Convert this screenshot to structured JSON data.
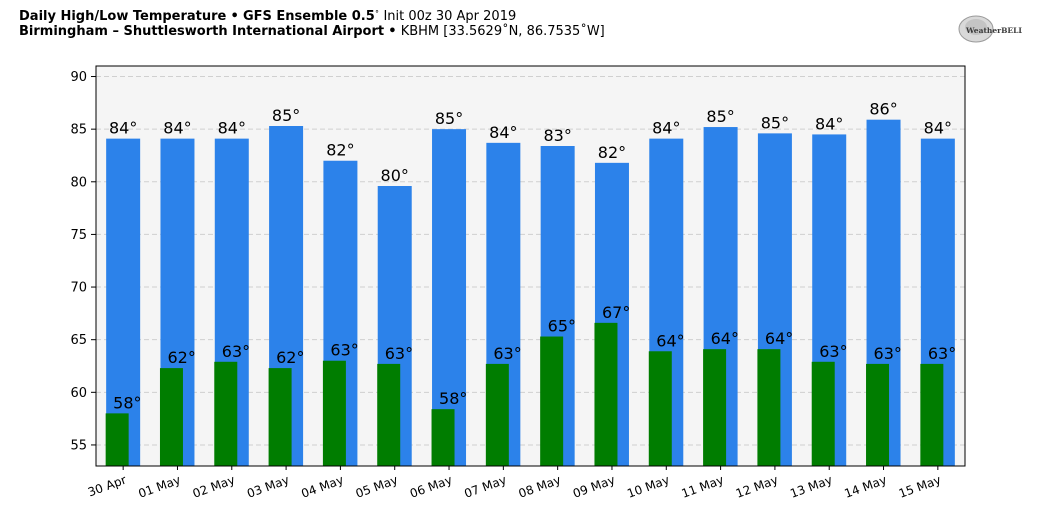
{
  "header": {
    "title_bold": "Daily High/Low Temperature",
    "separator": "•",
    "model_bold": "GFS Ensemble 0.5",
    "init_text": "Init 00z 30 Apr 2019",
    "station_bold": "Birmingham – Shuttlesworth International Airport",
    "station_info": "KBHM [33.5629˚N, 86.7535˚W]"
  },
  "logo": {
    "text": "WeatherBELL"
  },
  "colors": {
    "high": "#2c82ea",
    "low": "#007d00",
    "plot_bg": "#f5f5f5",
    "grid": "#d0d0d0"
  },
  "chart_data": {
    "type": "bar",
    "title": "Daily High/Low Temperature",
    "xlabel": "",
    "ylabel": "",
    "ylim": [
      53,
      91
    ],
    "yticks": [
      55,
      60,
      65,
      70,
      75,
      80,
      85,
      90
    ],
    "grid": true,
    "categories": [
      "30 Apr",
      "01 May",
      "02 May",
      "03 May",
      "04 May",
      "05 May",
      "06 May",
      "07 May",
      "08 May",
      "09 May",
      "10 May",
      "11 May",
      "12 May",
      "13 May",
      "14 May",
      "15 May"
    ],
    "series": [
      {
        "name": "High",
        "values": [
          84.1,
          84.1,
          84.1,
          85.3,
          82.0,
          79.6,
          85.0,
          83.7,
          83.4,
          81.8,
          84.1,
          85.2,
          84.6,
          84.5,
          85.9,
          84.1
        ],
        "labels": [
          "84°",
          "84°",
          "84°",
          "85°",
          "82°",
          "80°",
          "85°",
          "84°",
          "83°",
          "82°",
          "84°",
          "85°",
          "85°",
          "84°",
          "86°",
          "84°"
        ]
      },
      {
        "name": "Low",
        "values": [
          58.0,
          62.3,
          62.9,
          62.3,
          63.0,
          62.7,
          58.4,
          62.7,
          65.3,
          66.6,
          63.9,
          64.1,
          64.1,
          62.9,
          62.7,
          62.7
        ],
        "labels": [
          "58°",
          "62°",
          "63°",
          "62°",
          "63°",
          "63°",
          "58°",
          "63°",
          "65°",
          "67°",
          "64°",
          "64°",
          "64°",
          "63°",
          "63°",
          "63°"
        ]
      }
    ]
  }
}
